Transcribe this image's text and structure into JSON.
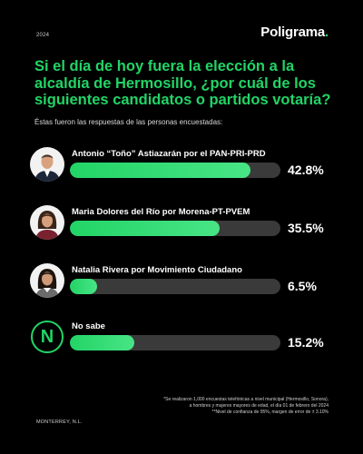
{
  "header": {
    "year": "2024",
    "brand_name": "Poligrama",
    "brand_dot": ".",
    "brand_dot_color": "#22d466"
  },
  "headline": "Si el día de hoy fuera la elección a la alcaldía de Hermosillo, ¿por cuál de los siguientes candidatos o partidos votaría?",
  "subtitle": "Éstas fueron las respuestas de las personas encuestadas:",
  "chart_data": {
    "type": "bar",
    "orientation": "horizontal",
    "title": "Si el día de hoy fuera la elección a la alcaldía de Hermosillo, ¿por cuál de los siguientes candidatos o partidos votaría?",
    "categories": [
      "Antonio “Toño” Astiazarán por el PAN-PRI-PRD",
      "Maria Dolores del Río por Morena-PT-PVEM",
      "Natalia Rivera por Movimiento Ciudadano",
      "No sabe"
    ],
    "values": [
      42.8,
      35.5,
      6.5,
      15.2
    ],
    "value_labels": [
      "42.8%",
      "35.5%",
      "6.5%",
      "15.2%"
    ],
    "xlim": [
      0,
      50
    ],
    "bar_color": "#22d466",
    "track_color": "#3a3a3a",
    "icons": [
      "man-portrait-icon",
      "woman-portrait-icon",
      "woman-portrait-icon",
      "letter-n-circle-icon"
    ],
    "icon_letter": "N"
  },
  "footer": {
    "notes": [
      "*Se realizaron 1,000 encuestas telefónicas a nivel municipal (Hermosillo, Sonora),",
      "a hombres y mujeres mayores de edad, el día 01 de febrero del 2024",
      "**Nivel de confianza de 95%, margen de error de ± 3.10%"
    ],
    "location": "MONTERREY, N.L."
  }
}
